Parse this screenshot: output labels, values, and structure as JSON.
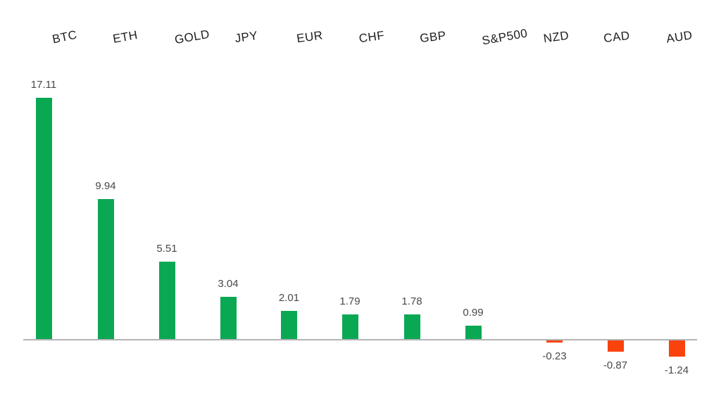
{
  "chart_data": {
    "type": "bar",
    "title": "",
    "xlabel": "",
    "ylabel": "",
    "categories": [
      "BTC",
      "ETH",
      "GOLD",
      "JPY",
      "EUR",
      "CHF",
      "GBP",
      "S&P500",
      "NZD",
      "CAD",
      "AUD"
    ],
    "values": [
      17.11,
      9.94,
      5.51,
      3.04,
      2.01,
      1.79,
      1.78,
      0.99,
      -0.23,
      -0.87,
      -1.24
    ],
    "value_labels": [
      "17.11",
      "9.94",
      "5.51",
      "3.04",
      "2.01",
      "1.79",
      "1.78",
      "0.99",
      "-0.23",
      "-0.87",
      "-1.24"
    ],
    "baseline_value": 0,
    "ylim": [
      -1.24,
      17.11
    ],
    "grid": false,
    "legend": "none",
    "category_labels_position": "top",
    "colors": {
      "positive_bar": "#0BA854",
      "negative_bar": "#FA420D",
      "axis_line": "#B4B4B6",
      "category_text": "#1E1E1E",
      "value_text": "#484848",
      "background": "#FFFFFF"
    }
  }
}
